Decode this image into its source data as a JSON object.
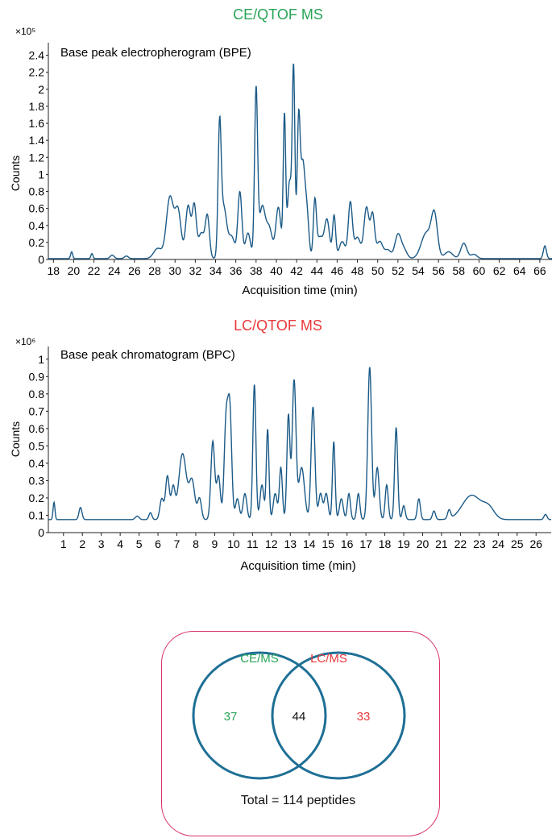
{
  "colors": {
    "trace": "#1b5a87",
    "ce_title": "#27a456",
    "lc_title": "#e8373a",
    "venn_circle": "#1e6f95",
    "venn_box": "#d8336b"
  },
  "ce_title": "CE/QTOF MS",
  "lc_title": "LC/QTOF MS",
  "venn": {
    "ce_label": "CE/MS",
    "lc_label": "LC/MS",
    "ce_only": "37",
    "overlap": "44",
    "lc_only": "33",
    "total": "Total = 114 peptides"
  },
  "chart_data": [
    {
      "type": "line",
      "title": "CE/QTOF MS",
      "inner_label": "Base peak electropherogram (BPE)",
      "xlabel": "Acquisition time (min)",
      "ylabel": "Counts",
      "y_multiplier": "×10⁵",
      "xlim": [
        17.5,
        67.2
      ],
      "ylim": [
        0,
        2.5
      ],
      "xticks": [
        "18",
        "20",
        "22",
        "24",
        "26",
        "28",
        "30",
        "32",
        "34",
        "36",
        "38",
        "40",
        "42",
        "44",
        "46",
        "48",
        "50",
        "52",
        "54",
        "56",
        "58",
        "60",
        "62",
        "64",
        "66"
      ],
      "yticks": [
        "0",
        "0.2",
        "0.4",
        "0.6",
        "0.8",
        "1",
        "1.2",
        "1.4",
        "1.6",
        "1.8",
        "2",
        "2.2",
        "2.4"
      ],
      "baseline": 0.01,
      "peaks": [
        [
          19.8,
          0.08,
          0.1
        ],
        [
          21.8,
          0.06,
          0.1
        ],
        [
          23.8,
          0.04,
          0.2
        ],
        [
          25.2,
          0.03,
          0.2
        ],
        [
          28.3,
          0.12,
          0.4
        ],
        [
          29.5,
          0.72,
          0.35
        ],
        [
          30.3,
          0.55,
          0.3
        ],
        [
          31.3,
          0.62,
          0.25
        ],
        [
          31.9,
          0.6,
          0.2
        ],
        [
          32.6,
          0.3,
          0.3
        ],
        [
          33.2,
          0.48,
          0.2
        ],
        [
          34.4,
          1.42,
          0.15
        ],
        [
          34.8,
          0.6,
          0.3
        ],
        [
          35.6,
          0.25,
          0.3
        ],
        [
          36.4,
          0.78,
          0.2
        ],
        [
          37.2,
          0.3,
          0.25
        ],
        [
          38.0,
          1.95,
          0.15
        ],
        [
          38.6,
          0.6,
          0.3
        ],
        [
          39.3,
          0.35,
          0.3
        ],
        [
          40.2,
          0.6,
          0.25
        ],
        [
          40.8,
          1.65,
          0.12
        ],
        [
          41.3,
          0.9,
          0.2
        ],
        [
          41.7,
          2.17,
          0.13
        ],
        [
          42.2,
          1.6,
          0.15
        ],
        [
          42.6,
          1.05,
          0.2
        ],
        [
          43.0,
          0.55,
          0.2
        ],
        [
          43.8,
          0.65,
          0.15
        ],
        [
          44.3,
          0.25,
          0.3
        ],
        [
          45.0,
          0.45,
          0.25
        ],
        [
          45.7,
          0.5,
          0.15
        ],
        [
          46.5,
          0.2,
          0.3
        ],
        [
          47.3,
          0.65,
          0.2
        ],
        [
          48.0,
          0.25,
          0.3
        ],
        [
          48.9,
          0.6,
          0.25
        ],
        [
          49.5,
          0.5,
          0.2
        ],
        [
          50.2,
          0.2,
          0.3
        ],
        [
          51.0,
          0.1,
          0.3
        ],
        [
          52.0,
          0.28,
          0.3
        ],
        [
          52.6,
          0.1,
          0.3
        ],
        [
          54.8,
          0.3,
          0.5
        ],
        [
          55.6,
          0.48,
          0.3
        ],
        [
          57.0,
          0.08,
          0.4
        ],
        [
          58.5,
          0.18,
          0.3
        ],
        [
          59.5,
          0.05,
          0.3
        ],
        [
          66.5,
          0.15,
          0.15
        ]
      ]
    },
    {
      "type": "line",
      "title": "LC/QTOF MS",
      "inner_label": "Base peak chromatogram (BPC)",
      "xlabel": "Acquisition time (min)",
      "ylabel": "Counts",
      "y_multiplier": "×10⁶",
      "xlim": [
        0.2,
        26.8
      ],
      "ylim": [
        0,
        1.05
      ],
      "xticks": [
        "1",
        "2",
        "3",
        "4",
        "5",
        "6",
        "7",
        "8",
        "9",
        "10",
        "11",
        "12",
        "13",
        "14",
        "15",
        "16",
        "17",
        "18",
        "19",
        "20",
        "21",
        "22",
        "23",
        "24",
        "25",
        "26"
      ],
      "yticks": [
        "0",
        "0.1",
        "0.2",
        "0.3",
        "0.4",
        "0.5",
        "0.6",
        "0.7",
        "0.8",
        "0.9",
        "1"
      ],
      "baseline": 0.075,
      "peaks": [
        [
          0.5,
          0.1,
          0.05
        ],
        [
          1.9,
          0.07,
          0.08
        ],
        [
          4.9,
          0.02,
          0.1
        ],
        [
          5.6,
          0.04,
          0.08
        ],
        [
          6.2,
          0.12,
          0.1
        ],
        [
          6.5,
          0.25,
          0.1
        ],
        [
          6.8,
          0.18,
          0.1
        ],
        [
          7.3,
          0.38,
          0.2
        ],
        [
          7.8,
          0.22,
          0.15
        ],
        [
          8.2,
          0.12,
          0.1
        ],
        [
          8.9,
          0.45,
          0.1
        ],
        [
          9.2,
          0.25,
          0.1
        ],
        [
          9.6,
          0.55,
          0.1
        ],
        [
          9.8,
          0.62,
          0.1
        ],
        [
          10.2,
          0.12,
          0.1
        ],
        [
          10.6,
          0.15,
          0.1
        ],
        [
          11.1,
          0.78,
          0.08
        ],
        [
          11.5,
          0.2,
          0.1
        ],
        [
          11.8,
          0.52,
          0.07
        ],
        [
          12.2,
          0.15,
          0.1
        ],
        [
          12.5,
          0.3,
          0.08
        ],
        [
          12.9,
          0.6,
          0.08
        ],
        [
          13.2,
          0.8,
          0.1
        ],
        [
          13.6,
          0.3,
          0.15
        ],
        [
          14.2,
          0.65,
          0.1
        ],
        [
          14.6,
          0.15,
          0.1
        ],
        [
          14.9,
          0.15,
          0.1
        ],
        [
          15.3,
          0.45,
          0.07
        ],
        [
          15.7,
          0.12,
          0.1
        ],
        [
          16.1,
          0.15,
          0.08
        ],
        [
          16.6,
          0.15,
          0.08
        ],
        [
          17.2,
          0.88,
          0.1
        ],
        [
          17.6,
          0.3,
          0.1
        ],
        [
          18.1,
          0.2,
          0.08
        ],
        [
          18.6,
          0.53,
          0.08
        ],
        [
          19.0,
          0.08,
          0.08
        ],
        [
          19.8,
          0.12,
          0.08
        ],
        [
          20.6,
          0.05,
          0.08
        ],
        [
          21.4,
          0.05,
          0.08
        ],
        [
          22.6,
          0.14,
          0.5
        ],
        [
          23.5,
          0.06,
          0.3
        ],
        [
          26.5,
          0.03,
          0.08
        ]
      ]
    }
  ]
}
